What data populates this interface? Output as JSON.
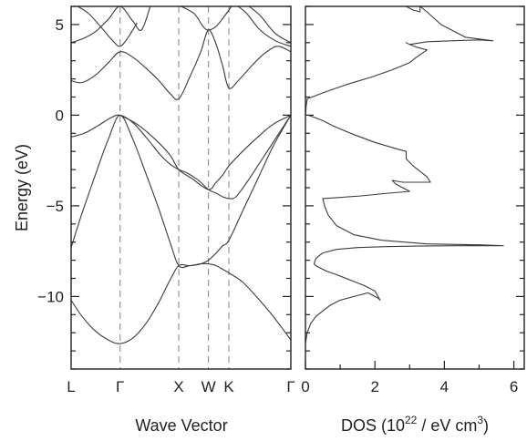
{
  "chart_data": [
    {
      "type": "line",
      "panel": "band-structure",
      "xlabel": "Wave Vector",
      "ylabel": "Energy (eV)",
      "ylim": [
        -14,
        6
      ],
      "yticks": [
        5,
        0,
        -5,
        -10
      ],
      "ytick_labels": [
        "5",
        "0",
        "−5",
        "−10"
      ],
      "kpoints": [
        {
          "label": "L",
          "pos": 0.0,
          "dashed": false
        },
        {
          "label": "Γ",
          "pos": 0.223,
          "dashed": true
        },
        {
          "label": "X",
          "pos": 0.49,
          "dashed": true
        },
        {
          "label": "W",
          "pos": 0.625,
          "dashed": true
        },
        {
          "label": "K",
          "pos": 0.718,
          "dashed": true
        },
        {
          "label": "Γ",
          "pos": 1.0,
          "dashed": false
        }
      ],
      "grid": false,
      "series": [
        {
          "x": [
            0,
            0.05,
            0.11,
            0.17,
            0.223,
            0.28,
            0.34,
            0.4,
            0.45,
            0.49,
            0.54,
            0.59,
            0.625,
            0.66,
            0.69,
            0.718,
            0.78,
            0.85,
            0.92,
            1.0
          ],
          "y": [
            -10.2,
            -11.1,
            -11.9,
            -12.4,
            -12.6,
            -12.3,
            -11.5,
            -10.3,
            -9.1,
            -8.3,
            -8.3,
            -8.2,
            -8.2,
            -8.3,
            -8.5,
            -8.7,
            -9.2,
            -10.1,
            -11.1,
            -12.4
          ]
        },
        {
          "x": [
            0,
            0.05,
            0.11,
            0.17,
            0.223,
            0.28,
            0.34,
            0.4,
            0.45,
            0.49,
            0.54,
            0.59,
            0.625,
            0.66,
            0.69,
            0.718,
            0.78,
            0.85,
            0.92,
            1.0
          ],
          "y": [
            -7.3,
            -5.4,
            -3.3,
            -1.3,
            0.0,
            -1.3,
            -3.2,
            -5.2,
            -7.0,
            -8.3,
            -8.3,
            -8.2,
            -8.0,
            -7.6,
            -7.2,
            -6.9,
            -5.3,
            -3.5,
            -1.7,
            0.0
          ]
        },
        {
          "x": [
            0,
            0.06,
            0.12,
            0.18,
            0.223,
            0.28,
            0.34,
            0.4,
            0.45,
            0.49,
            0.53,
            0.58,
            0.625,
            0.66,
            0.69,
            0.718,
            0.75,
            0.8,
            0.86,
            0.93,
            1.0
          ],
          "y": [
            -1.2,
            -1.0,
            -0.6,
            -0.15,
            0.0,
            -0.4,
            -1.2,
            -2.1,
            -2.7,
            -3.0,
            -3.2,
            -3.6,
            -4.1,
            -4.3,
            -4.5,
            -4.6,
            -4.5,
            -3.7,
            -2.6,
            -1.3,
            0.0
          ]
        },
        {
          "x": [
            0.223,
            0.3,
            0.38,
            0.45,
            0.49,
            0.55,
            0.625,
            0.66,
            0.69,
            0.718,
            0.78,
            0.85,
            0.92,
            1.0
          ],
          "y": [
            0.0,
            -0.5,
            -1.3,
            -2.2,
            -3.0,
            -3.5,
            -4.1,
            -3.7,
            -3.3,
            -2.8,
            -2.0,
            -1.2,
            -0.5,
            0.0
          ]
        },
        {
          "x": [
            0,
            0.05,
            0.11,
            0.17,
            0.223,
            0.28,
            0.34,
            0.4,
            0.45,
            0.49,
            0.54,
            0.59,
            0.625,
            0.66,
            0.69,
            0.718,
            0.76,
            0.82,
            0.88,
            0.94,
            1.0
          ],
          "y": [
            1.9,
            1.8,
            2.2,
            2.9,
            3.5,
            3.2,
            2.6,
            1.9,
            1.2,
            0.9,
            2.1,
            3.5,
            4.7,
            3.9,
            2.7,
            1.5,
            1.9,
            2.7,
            3.4,
            3.8,
            3.5
          ]
        },
        {
          "x": [
            0,
            0.05,
            0.11,
            0.17,
            0.223,
            0.28,
            0.32,
            0.36
          ],
          "y": [
            4.0,
            4.2,
            4.6,
            5.3,
            6.0,
            5.2,
            4.7,
            6.0
          ]
        },
        {
          "x": [
            0.03,
            0.08,
            0.14,
            0.19,
            0.223,
            0.26,
            0.3
          ],
          "y": [
            6.0,
            5.6,
            4.8,
            4.1,
            3.8,
            4.3,
            5.1
          ]
        },
        {
          "x": [
            0.5,
            0.56,
            0.6,
            0.625,
            0.66,
            0.7,
            0.73
          ],
          "y": [
            6.0,
            5.6,
            4.9,
            4.7,
            4.9,
            5.5,
            6.0
          ]
        },
        {
          "x": [
            0.76,
            0.8,
            0.86,
            0.93,
            1.0
          ],
          "y": [
            6.0,
            5.6,
            4.7,
            4.1,
            3.8
          ]
        },
        {
          "x": [
            0.81,
            0.86,
            0.93,
            1.0
          ],
          "y": [
            6.0,
            5.5,
            4.5,
            4.0
          ]
        }
      ]
    },
    {
      "type": "line",
      "panel": "density-of-states",
      "xlabel": "DOS (10",
      "xlabel_sup_exp": "22",
      "xlabel_mid": " / eV cm",
      "xlabel_sup_unit": "3",
      "xlabel_end": ")",
      "xlim": [
        0,
        6.3
      ],
      "ylim": [
        -14,
        6
      ],
      "xticks": [
        0,
        2,
        4,
        6
      ],
      "xtick_labels": [
        "0",
        "2",
        "4",
        "6"
      ],
      "grid": false,
      "series": [
        {
          "x": [
            0.0,
            0.05,
            0.15,
            0.3,
            0.5,
            0.7,
            1.0,
            1.4,
            1.8,
            2.1,
            2.15,
            2.0,
            1.7,
            1.3,
            0.9,
            0.6,
            0.4,
            0.3,
            0.25,
            0.3,
            0.5,
            0.9,
            1.5,
            2.3,
            3.2,
            4.3,
            5.0,
            5.7,
            5.0,
            3.5,
            2.2,
            1.4,
            0.9,
            0.65,
            0.55,
            0.5,
            0.9,
            1.6,
            2.4,
            3.0,
            2.9,
            2.6,
            2.5,
            2.8,
            3.1,
            3.6,
            3.5,
            3.1,
            2.9,
            2.9,
            2.7,
            2.0,
            1.3,
            0.8,
            0.5,
            0.3,
            0.15,
            0.08,
            0.0,
            0.02,
            0.05,
            0.6,
            1.2,
            1.9,
            2.5,
            3.0,
            3.2,
            3.5,
            3.2,
            3.0,
            2.9,
            3.0,
            3.5,
            4.2,
            5.0,
            5.4,
            4.6,
            3.9,
            3.5,
            3.3,
            3.3,
            3.1,
            2.9
          ],
          "y": [
            -12.6,
            -12.0,
            -11.5,
            -11.1,
            -10.8,
            -10.5,
            -10.2,
            -10.0,
            -9.8,
            -10.1,
            -10.2,
            -9.7,
            -9.4,
            -9.1,
            -8.8,
            -8.6,
            -8.4,
            -8.3,
            -8.2,
            -7.9,
            -7.6,
            -7.4,
            -7.3,
            -7.25,
            -7.22,
            -7.2,
            -7.2,
            -7.2,
            -7.15,
            -7.1,
            -6.9,
            -6.6,
            -6.1,
            -5.5,
            -5.0,
            -4.6,
            -4.55,
            -4.45,
            -4.3,
            -4.2,
            -4.1,
            -3.8,
            -3.6,
            -3.7,
            -3.7,
            -3.7,
            -3.4,
            -2.8,
            -2.4,
            -2.0,
            -1.9,
            -1.5,
            -1.0,
            -0.6,
            -0.3,
            -0.15,
            -0.05,
            0.0,
            0.0,
            0.5,
            0.9,
            1.3,
            1.7,
            2.1,
            2.5,
            2.9,
            3.2,
            3.6,
            3.75,
            3.9,
            4.0,
            3.9,
            4.05,
            4.1,
            4.15,
            4.1,
            4.3,
            5.0,
            5.7,
            6.0,
            5.7,
            5.8,
            6.0
          ]
        }
      ]
    }
  ]
}
